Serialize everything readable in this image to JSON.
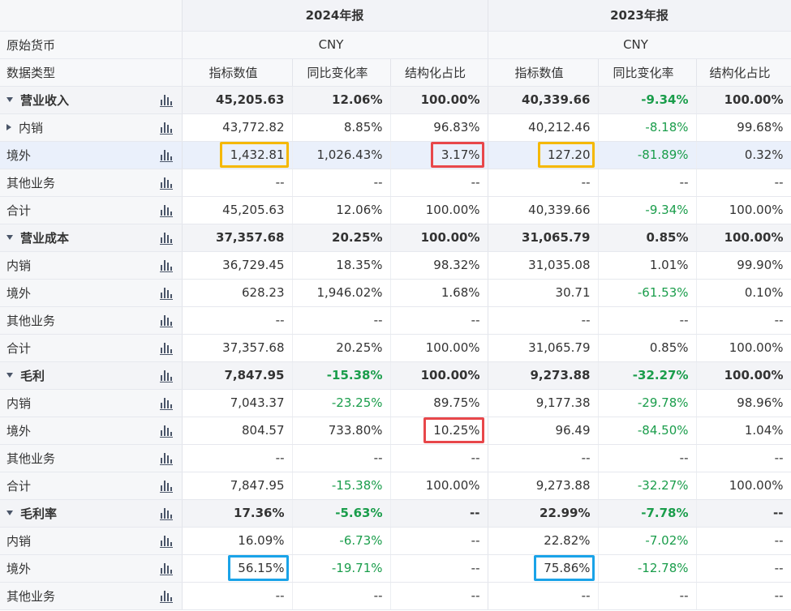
{
  "header": {
    "years": [
      "2024年报",
      "2023年报"
    ],
    "currency_label": "原始货币",
    "currency_values": [
      "CNY",
      "CNY"
    ],
    "type_label": "数据类型",
    "columns": [
      "指标数值",
      "同比变化率",
      "结构化占比",
      "指标数值",
      "同比变化率",
      "结构化占比"
    ]
  },
  "rows": [
    {
      "label": "营业收入",
      "level": 0,
      "expand": "down",
      "v": [
        "45,205.63",
        "12.06%",
        "100.00%",
        "40,339.66",
        "-9.34%",
        "100.00%"
      ]
    },
    {
      "label": "内销",
      "level": 1,
      "expand": "right",
      "v": [
        "43,772.82",
        "8.85%",
        "96.83%",
        "40,212.46",
        "-8.18%",
        "99.68%"
      ]
    },
    {
      "label": "境外",
      "level": 1,
      "v": [
        "1,432.81",
        "1,026.43%",
        "3.17%",
        "127.20",
        "-81.89%",
        "0.32%"
      ]
    },
    {
      "label": "其他业务",
      "level": 1,
      "v": [
        "--",
        "--",
        "--",
        "--",
        "--",
        "--"
      ]
    },
    {
      "label": "合计",
      "level": 1,
      "v": [
        "45,205.63",
        "12.06%",
        "100.00%",
        "40,339.66",
        "-9.34%",
        "100.00%"
      ]
    },
    {
      "label": "营业成本",
      "level": 0,
      "expand": "down",
      "v": [
        "37,357.68",
        "20.25%",
        "100.00%",
        "31,065.79",
        "0.85%",
        "100.00%"
      ]
    },
    {
      "label": "内销",
      "level": 1,
      "v": [
        "36,729.45",
        "18.35%",
        "98.32%",
        "31,035.08",
        "1.01%",
        "99.90%"
      ]
    },
    {
      "label": "境外",
      "level": 1,
      "v": [
        "628.23",
        "1,946.02%",
        "1.68%",
        "30.71",
        "-61.53%",
        "0.10%"
      ]
    },
    {
      "label": "其他业务",
      "level": 1,
      "v": [
        "--",
        "--",
        "--",
        "--",
        "--",
        "--"
      ]
    },
    {
      "label": "合计",
      "level": 1,
      "v": [
        "37,357.68",
        "20.25%",
        "100.00%",
        "31,065.79",
        "0.85%",
        "100.00%"
      ]
    },
    {
      "label": "毛利",
      "level": 0,
      "expand": "down",
      "v": [
        "7,847.95",
        "-15.38%",
        "100.00%",
        "9,273.88",
        "-32.27%",
        "100.00%"
      ]
    },
    {
      "label": "内销",
      "level": 1,
      "v": [
        "7,043.37",
        "-23.25%",
        "89.75%",
        "9,177.38",
        "-29.78%",
        "98.96%"
      ]
    },
    {
      "label": "境外",
      "level": 1,
      "v": [
        "804.57",
        "733.80%",
        "10.25%",
        "96.49",
        "-84.50%",
        "1.04%"
      ]
    },
    {
      "label": "其他业务",
      "level": 1,
      "v": [
        "--",
        "--",
        "--",
        "--",
        "--",
        "--"
      ]
    },
    {
      "label": "合计",
      "level": 1,
      "v": [
        "7,847.95",
        "-15.38%",
        "100.00%",
        "9,273.88",
        "-32.27%",
        "100.00%"
      ]
    },
    {
      "label": "毛利率",
      "level": 0,
      "expand": "down",
      "v": [
        "17.36%",
        "-5.63%",
        "--",
        "22.99%",
        "-7.78%",
        "--"
      ]
    },
    {
      "label": "内销",
      "level": 1,
      "v": [
        "16.09%",
        "-6.73%",
        "--",
        "22.82%",
        "-7.02%",
        "--"
      ]
    },
    {
      "label": "境外",
      "level": 1,
      "v": [
        "56.15%",
        "-19.71%",
        "--",
        "75.86%",
        "-12.78%",
        "--"
      ]
    },
    {
      "label": "其他业务",
      "level": 1,
      "v": [
        "--",
        "--",
        "--",
        "--",
        "--",
        "--"
      ]
    }
  ],
  "colors": {
    "negative": "#1a9d4b",
    "highlight_orange": "#f5b800",
    "highlight_red": "#e8474a",
    "highlight_blue": "#1aa3e8",
    "row_highlight": "#eaf0fb"
  },
  "highlight_boxes": [
    {
      "row": 2,
      "col": 0,
      "color": "orange"
    },
    {
      "row": 2,
      "col": 2,
      "color": "red"
    },
    {
      "row": 2,
      "col": 3,
      "color": "orange"
    },
    {
      "row": 12,
      "col": 2,
      "color": "red"
    },
    {
      "row": 17,
      "col": 0,
      "color": "blue"
    },
    {
      "row": 17,
      "col": 3,
      "color": "blue"
    }
  ],
  "highlighted_row": 2
}
